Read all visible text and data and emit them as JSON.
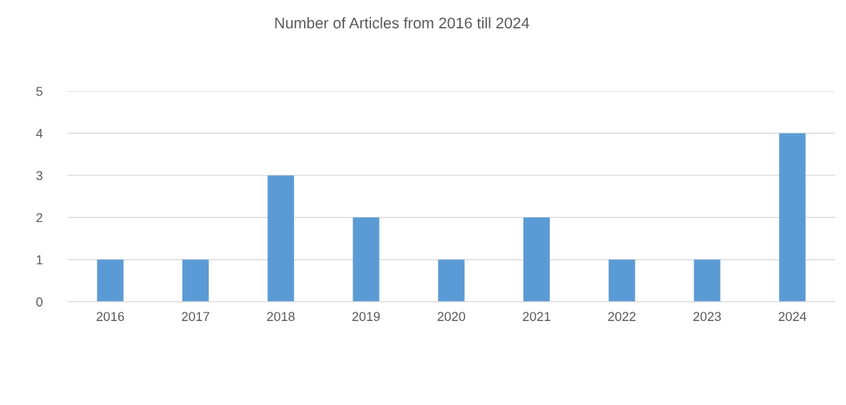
{
  "chart_data": {
    "type": "bar",
    "title": "Number of Articles from 2016 till 2024",
    "categories": [
      "2016",
      "2017",
      "2018",
      "2019",
      "2020",
      "2021",
      "2022",
      "2023",
      "2024"
    ],
    "values": [
      1,
      1,
      3,
      2,
      1,
      2,
      1,
      1,
      4
    ],
    "color": "#5b9bd5",
    "ylim": [
      0,
      5
    ],
    "yticks": [
      0,
      1,
      2,
      3,
      4,
      5
    ],
    "grid": "y",
    "legend": false
  }
}
